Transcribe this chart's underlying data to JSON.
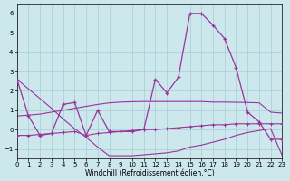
{
  "background_color": "#cce8ed",
  "grid_color": "#aaccd4",
  "line_color": "#993399",
  "xlim": [
    0,
    23
  ],
  "ylim": [
    -1.5,
    6.5
  ],
  "yticks": [
    -1,
    0,
    1,
    2,
    3,
    4,
    5,
    6
  ],
  "xticks": [
    0,
    1,
    2,
    3,
    4,
    5,
    6,
    7,
    8,
    9,
    10,
    11,
    12,
    13,
    14,
    15,
    16,
    17,
    18,
    19,
    20,
    21,
    22,
    23
  ],
  "xlabel": "Windchill (Refroidissement éolien,°C)",
  "series_jagged": [
    2.6,
    0.7,
    -0.3,
    -0.2,
    1.3,
    1.4,
    -0.3,
    1.0,
    -0.1,
    -0.1,
    -0.1,
    0.0,
    2.6,
    1.9,
    2.7,
    6.0,
    6.0,
    5.4,
    4.7,
    3.2,
    0.9,
    0.4,
    -0.5,
    -0.5
  ],
  "series_low_flat": [
    -0.3,
    -0.3,
    -0.25,
    -0.2,
    -0.15,
    -0.1,
    -0.3,
    -0.2,
    -0.15,
    -0.1,
    -0.05,
    0.0,
    0.0,
    0.05,
    0.1,
    0.15,
    0.2,
    0.25,
    0.25,
    0.3,
    0.3,
    0.3,
    0.3,
    0.3
  ],
  "series_decline": [
    2.6,
    2.1,
    1.6,
    1.1,
    0.55,
    0.05,
    -0.4,
    -0.9,
    -1.35,
    -1.35,
    -1.35,
    -1.3,
    -1.25,
    -1.2,
    -1.1,
    -0.9,
    -0.8,
    -0.65,
    -0.5,
    -0.3,
    -0.15,
    -0.05,
    0.05,
    -1.35
  ],
  "series_rise": [
    0.7,
    0.75,
    0.8,
    0.9,
    1.0,
    1.1,
    1.2,
    1.3,
    1.38,
    1.42,
    1.44,
    1.45,
    1.45,
    1.45,
    1.45,
    1.45,
    1.45,
    1.42,
    1.42,
    1.41,
    1.4,
    1.38,
    0.9,
    0.85
  ]
}
